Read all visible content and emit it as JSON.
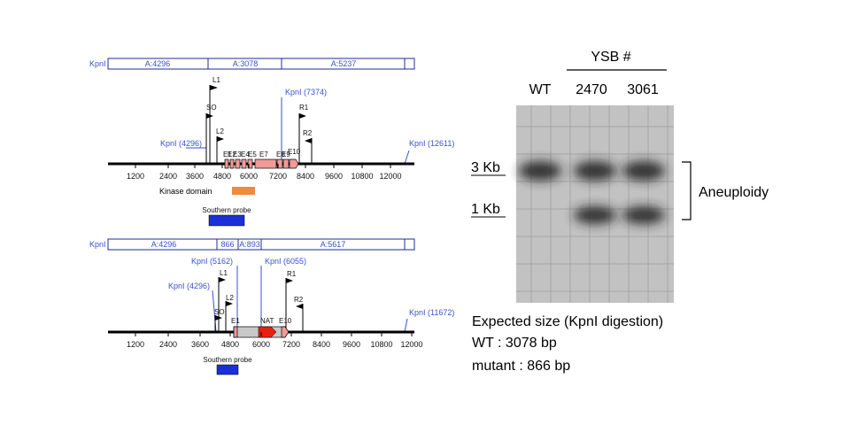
{
  "top_map": {
    "kpn_left": "KpnI",
    "fragments": [
      "A:4296",
      "A:3078",
      "A:5237"
    ],
    "sites": [
      "KpnI (4296)",
      "KpnI (7374)",
      "KpnI (12611)"
    ],
    "primers": [
      "L1",
      "SO",
      "L2",
      "R1",
      "R2"
    ],
    "exons": [
      "E1",
      "E2",
      "E3",
      "E4",
      "E5",
      "E6",
      "E7",
      "E8",
      "E9",
      "E10"
    ],
    "kinase_label": "Kinase domain",
    "probe_label": "Southern probe",
    "ticks": [
      "1200",
      "2400",
      "3600",
      "4800",
      "6000",
      "7200",
      "8400",
      "9600",
      "10800",
      "12000"
    ]
  },
  "bottom_map": {
    "kpn_left": "KpnI",
    "fragments": [
      "A:4296",
      "866",
      "A:893",
      "A:5617"
    ],
    "sites": [
      "KpnI (5162)",
      "KpnI (6055)",
      "KpnI (4296)",
      "KpnI (11672)"
    ],
    "primers": [
      "L1",
      "L2",
      "SO",
      "R1",
      "R2"
    ],
    "exons": [
      "E1",
      "NAT",
      "E10"
    ],
    "probe_label": "Southern probe",
    "ticks": [
      "1200",
      "2400",
      "3600",
      "4800",
      "6000",
      "7200",
      "8400",
      "9600",
      "10800",
      "12000"
    ]
  },
  "gel": {
    "header": "YSB #",
    "lanes": [
      "WT",
      "2470",
      "3061"
    ],
    "markers": [
      "3 Kb",
      "1 Kb"
    ],
    "bands": [
      {
        "lane": 0,
        "marker": 0
      },
      {
        "lane": 1,
        "marker": 0
      },
      {
        "lane": 1,
        "marker": 1
      },
      {
        "lane": 2,
        "marker": 0
      },
      {
        "lane": 2,
        "marker": 1
      }
    ],
    "bracket_label": "Aneuploidy"
  },
  "notes": [
    "Expected size (KpnI digestion)",
    "WT : 3078 bp",
    "mutant : 866 bp"
  ],
  "colors": {
    "site_blue": "#3a4fd0",
    "exon_pink": "#f29a96",
    "kinase_orange": "#f08a3c",
    "probe_blue": "#1a2fd6",
    "nat_red": "#e8210f",
    "nat_gray": "#c8c8c8"
  }
}
